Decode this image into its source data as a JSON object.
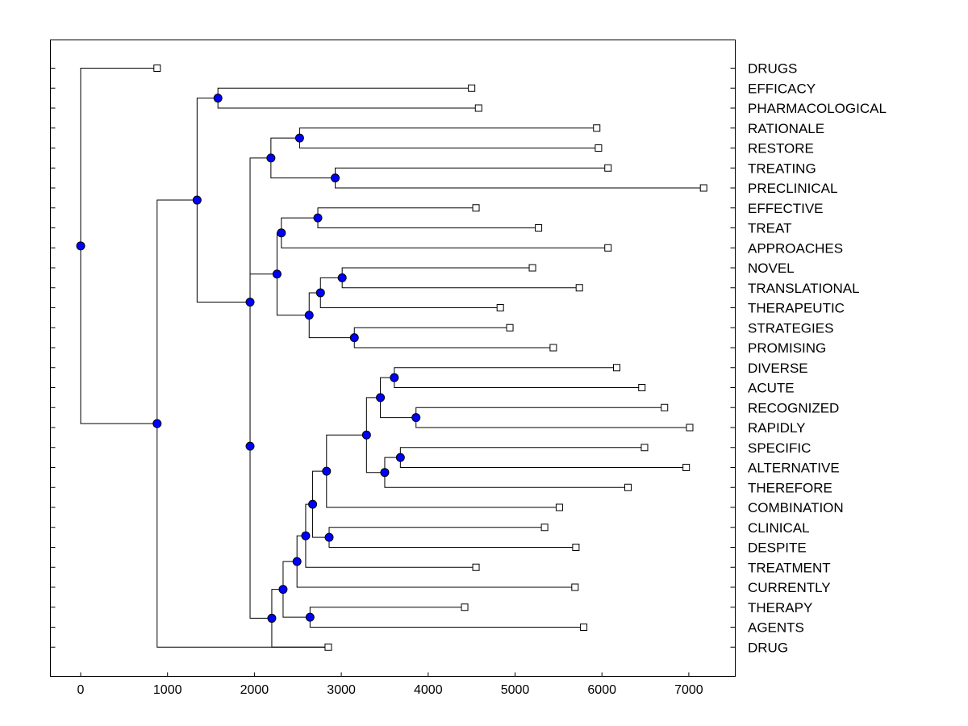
{
  "chart_data": {
    "type": "dendrogram",
    "orientation": "horizontal",
    "title": "",
    "xlabel": "",
    "ylabel": "",
    "xlim": [
      -350,
      7500
    ],
    "xticks": [
      0,
      1000,
      2000,
      3000,
      4000,
      5000,
      6000,
      7000
    ],
    "leaves": [
      {
        "label": "DRUGS",
        "value": 880
      },
      {
        "label": "EFFICACY",
        "value": 4500
      },
      {
        "label": "PHARMACOLOGICAL",
        "value": 4580
      },
      {
        "label": "RATIONALE",
        "value": 5940
      },
      {
        "label": "RESTORE",
        "value": 5960
      },
      {
        "label": "TREATING",
        "value": 6070
      },
      {
        "label": "PRECLINICAL",
        "value": 7170
      },
      {
        "label": "EFFECTIVE",
        "value": 4550
      },
      {
        "label": "TREAT",
        "value": 5270
      },
      {
        "label": "APPROACHES",
        "value": 6070
      },
      {
        "label": "NOVEL",
        "value": 5200
      },
      {
        "label": "TRANSLATIONAL",
        "value": 5740
      },
      {
        "label": "THERAPEUTIC",
        "value": 4830
      },
      {
        "label": "STRATEGIES",
        "value": 4940
      },
      {
        "label": "PROMISING",
        "value": 5440
      },
      {
        "label": "DIVERSE",
        "value": 6170
      },
      {
        "label": "ACUTE",
        "value": 6460
      },
      {
        "label": "RECOGNIZED",
        "value": 6720
      },
      {
        "label": "RAPIDLY",
        "value": 7010
      },
      {
        "label": "SPECIFIC",
        "value": 6490
      },
      {
        "label": "ALTERNATIVE",
        "value": 6970
      },
      {
        "label": "THEREFORE",
        "value": 6300
      },
      {
        "label": "COMBINATION",
        "value": 5510
      },
      {
        "label": "CLINICAL",
        "value": 5340
      },
      {
        "label": "DESPITE",
        "value": 5700
      },
      {
        "label": "TREATMENT",
        "value": 4550
      },
      {
        "label": "CURRENTLY",
        "value": 5690
      },
      {
        "label": "THERAPY",
        "value": 4420
      },
      {
        "label": "AGENTS",
        "value": 5790
      },
      {
        "label": "DRUG",
        "value": 2850
      }
    ],
    "nodes": [
      {
        "id": "n1",
        "value": 1580,
        "children": [
          "L1",
          "L2"
        ]
      },
      {
        "id": "n2",
        "value": 2520,
        "children": [
          "L3",
          "L4"
        ]
      },
      {
        "id": "n3",
        "value": 2930,
        "children": [
          "L5",
          "L6"
        ]
      },
      {
        "id": "n4",
        "value": 2190,
        "children": [
          "n2",
          "n3"
        ]
      },
      {
        "id": "n5",
        "value": 2730,
        "children": [
          "L7",
          "L8"
        ]
      },
      {
        "id": "n6",
        "value": 2310,
        "children": [
          "n5",
          "L9"
        ]
      },
      {
        "id": "n7",
        "value": 3010,
        "children": [
          "L10",
          "L11"
        ]
      },
      {
        "id": "n8",
        "value": 2760,
        "children": [
          "n7",
          "L12"
        ]
      },
      {
        "id": "n9",
        "value": 3150,
        "children": [
          "L13",
          "L14"
        ]
      },
      {
        "id": "n10",
        "value": 2630,
        "children": [
          "n8",
          "n9"
        ]
      },
      {
        "id": "n11",
        "value": 2260,
        "children": [
          "n6",
          "n10"
        ]
      },
      {
        "id": "n12",
        "value": 3610,
        "children": [
          "L15",
          "L16"
        ]
      },
      {
        "id": "n13",
        "value": 3860,
        "children": [
          "L17",
          "L18"
        ]
      },
      {
        "id": "n14",
        "value": 3450,
        "children": [
          "n12",
          "n13"
        ]
      },
      {
        "id": "n15",
        "value": 3680,
        "children": [
          "L19",
          "L20"
        ]
      },
      {
        "id": "n16",
        "value": 3500,
        "children": [
          "n15",
          "L21"
        ]
      },
      {
        "id": "n17",
        "value": 3290,
        "children": [
          "n14",
          "n16"
        ]
      },
      {
        "id": "n18",
        "value": 2830,
        "children": [
          "n17",
          "L22"
        ]
      },
      {
        "id": "n19",
        "value": 2860,
        "children": [
          "L23",
          "L24"
        ]
      },
      {
        "id": "n20",
        "value": 2670,
        "children": [
          "n18",
          "n19"
        ]
      },
      {
        "id": "n21",
        "value": 2590,
        "children": [
          "n20",
          "L25"
        ]
      },
      {
        "id": "n22",
        "value": 2490,
        "children": [
          "n21",
          "L26"
        ]
      },
      {
        "id": "n23",
        "value": 2640,
        "children": [
          "L27",
          "L28"
        ]
      },
      {
        "id": "n24",
        "value": 2330,
        "children": [
          "n22",
          "n23"
        ]
      },
      {
        "id": "n25",
        "value": 2200,
        "children": [
          "n24",
          "L29"
        ]
      },
      {
        "id": "n26",
        "value": 1950,
        "children": [
          "n11",
          "n25"
        ]
      },
      {
        "id": "n27",
        "value": 1950,
        "children": [
          "n4",
          "n26"
        ]
      },
      {
        "id": "n28",
        "value": 1340,
        "children": [
          "n1",
          "n27"
        ]
      },
      {
        "id": "n29",
        "value": 880,
        "children": [
          "n28",
          "L29"
        ]
      },
      {
        "id": "n30",
        "value": 0,
        "children": [
          "L0",
          "n29"
        ]
      }
    ]
  }
}
